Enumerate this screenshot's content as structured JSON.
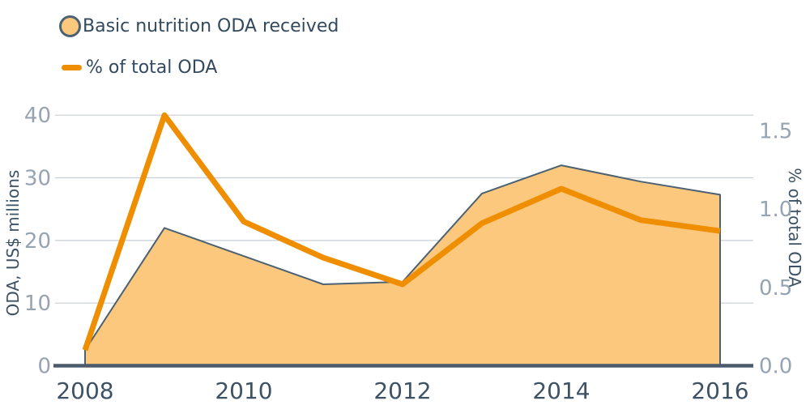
{
  "legend": [
    {
      "label": "Basic nutrition ODA received",
      "marker": "circle"
    },
    {
      "label": "% of total ODA",
      "marker": "dash"
    }
  ],
  "chart_data": {
    "type": "combo-area-line",
    "x": [
      2008,
      2009,
      2010,
      2011,
      2012,
      2013,
      2014,
      2015,
      2016
    ],
    "series": [
      {
        "name": "Basic nutrition ODA received",
        "type": "area",
        "axis": "left",
        "values": [
          2.5,
          22,
          17.5,
          13,
          13.4,
          27.5,
          32,
          29.4,
          27.3
        ]
      },
      {
        "name": "% of total ODA",
        "type": "line",
        "axis": "right",
        "values": [
          0.1,
          1.6,
          0.92,
          0.69,
          0.52,
          0.91,
          1.13,
          0.93,
          0.86
        ]
      }
    ],
    "left_axis": {
      "label": "ODA, US$ millions",
      "ticks": [
        "0",
        "10",
        "20",
        "30",
        "40"
      ],
      "range": [
        0,
        40
      ]
    },
    "right_axis": {
      "label": "% of total ODA",
      "ticks": [
        "0.0",
        "0.5",
        "1.0",
        "1.5"
      ],
      "range": [
        0,
        1.5
      ]
    },
    "x_axis": {
      "ticks": [
        "2008",
        "2010",
        "2012",
        "2014",
        "2016"
      ]
    },
    "grid": "horizontal",
    "legend_position": "top-left",
    "colors": {
      "area_fill": "#FBC87E",
      "area_stroke": "#4C6172",
      "line": "#EF8E00",
      "grid": "#C9CED4",
      "axis_line": "#4C5B6B",
      "value_tick_text": "#96A3B1",
      "x_tick_text": "#3E5265",
      "legend_text": "#32495E"
    }
  }
}
